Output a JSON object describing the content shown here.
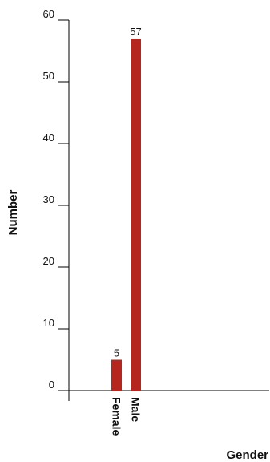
{
  "chart_data": {
    "type": "bar",
    "categories": [
      "Female",
      "Male"
    ],
    "values": [
      5,
      57
    ],
    "title": "",
    "xlabel": "Gender",
    "ylabel": "Number",
    "ylim": [
      0,
      60
    ],
    "yticks": [
      0,
      10,
      20,
      30,
      40,
      50,
      60
    ],
    "grid": false,
    "legend": "none",
    "bar_color": "#b5261e"
  }
}
